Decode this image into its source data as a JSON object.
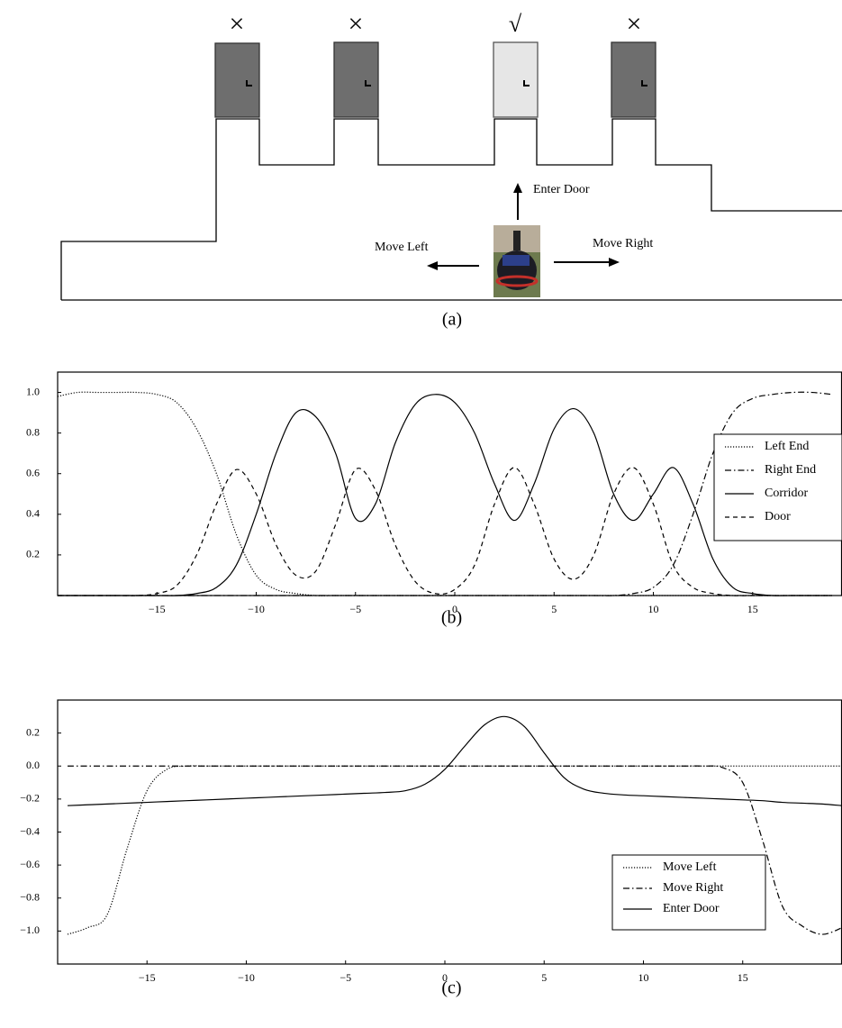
{
  "diagram": {
    "marks": [
      "×",
      "×",
      "√",
      "×"
    ],
    "enter_label": "Enter Door",
    "left_label": "Move Left",
    "right_label": "Move Right",
    "caption": "(a)"
  },
  "chart_data": [
    {
      "type": "line",
      "caption": "(b)",
      "xlim": [
        -20,
        19.5
      ],
      "ylim": [
        0,
        1.1
      ],
      "xticks": [
        {
          "value": -15,
          "label": "−15"
        },
        {
          "value": -10,
          "label": "−10"
        },
        {
          "value": -5,
          "label": "−5"
        },
        0,
        5,
        10,
        15
      ],
      "yticks": [
        0.2,
        0.4,
        0.6,
        0.8,
        {
          "value": 1,
          "label": "1.0"
        }
      ],
      "legend": "right",
      "x": [
        -20,
        -19,
        -18,
        -17,
        -16,
        -15,
        -14,
        -13,
        -12,
        -11,
        -10,
        -9,
        -8,
        -7,
        -6,
        -5,
        -4,
        -3,
        -2,
        -1,
        0,
        1,
        2,
        3,
        4,
        5,
        6,
        7,
        8,
        9,
        10,
        11,
        12,
        13,
        14,
        15,
        16,
        17,
        18,
        19
      ],
      "series": [
        {
          "name": "Left End",
          "color": "#000000",
          "style": "dotted",
          "values": [
            0.98,
            1,
            1,
            1,
            1,
            0.99,
            0.95,
            0.82,
            0.6,
            0.3,
            0.1,
            0.03,
            0.01,
            0,
            0,
            0,
            0,
            0,
            0,
            0,
            0,
            0,
            0,
            0,
            0,
            0,
            0,
            0,
            0,
            0,
            0,
            0,
            0,
            0,
            0,
            0,
            0,
            0,
            0,
            0
          ]
        },
        {
          "name": "Right End",
          "color": "#000000",
          "style": "dashdot",
          "values": [
            0,
            0,
            0,
            0,
            0,
            0,
            0,
            0,
            0,
            0,
            0,
            0,
            0,
            0,
            0,
            0,
            0,
            0,
            0,
            0,
            0,
            0,
            0,
            0,
            0,
            0,
            0,
            0,
            0,
            0.01,
            0.04,
            0.15,
            0.4,
            0.7,
            0.9,
            0.97,
            0.99,
            1,
            1,
            0.99
          ]
        },
        {
          "name": "Corridor",
          "color": "#000000",
          "style": "solid",
          "values": [
            0,
            0,
            0,
            0,
            0,
            0,
            0,
            0.01,
            0.04,
            0.15,
            0.4,
            0.7,
            0.9,
            0.88,
            0.7,
            0.38,
            0.45,
            0.75,
            0.94,
            0.99,
            0.95,
            0.8,
            0.55,
            0.37,
            0.55,
            0.82,
            0.92,
            0.8,
            0.5,
            0.37,
            0.5,
            0.63,
            0.45,
            0.18,
            0.04,
            0.01,
            0,
            0,
            0,
            0
          ]
        },
        {
          "name": "Door",
          "color": "#000000",
          "style": "dashed",
          "values": [
            0,
            0,
            0,
            0,
            0,
            0.01,
            0.05,
            0.2,
            0.45,
            0.62,
            0.5,
            0.25,
            0.1,
            0.12,
            0.35,
            0.62,
            0.52,
            0.25,
            0.07,
            0.01,
            0.03,
            0.15,
            0.45,
            0.63,
            0.45,
            0.18,
            0.08,
            0.2,
            0.5,
            0.63,
            0.45,
            0.15,
            0.04,
            0.01,
            0,
            0,
            0,
            0,
            0,
            0
          ]
        }
      ]
    },
    {
      "type": "line",
      "caption": "(c)",
      "xlim": [
        -19.5,
        20
      ],
      "ylim": [
        -1.2,
        0.4
      ],
      "xticks": [
        {
          "value": -15,
          "label": "−15"
        },
        {
          "value": -10,
          "label": "−10"
        },
        {
          "value": -5,
          "label": "−5"
        },
        0,
        5,
        10,
        15
      ],
      "yticks": [
        {
          "value": -1,
          "label": "−1.0"
        },
        {
          "value": -0.8,
          "label": "−0.8"
        },
        {
          "value": -0.6,
          "label": "−0.6"
        },
        {
          "value": -0.4,
          "label": "−0.4"
        },
        {
          "value": -0.2,
          "label": "−0.2"
        },
        {
          "value": 0,
          "label": "0.0"
        },
        0.2
      ],
      "legend": "lower right",
      "x": [
        -19,
        -18,
        -17,
        -16,
        -15,
        -14,
        -13,
        -12,
        -11,
        -10,
        -9,
        -8,
        -7,
        -6,
        -5,
        -4,
        -3,
        -2,
        -1,
        0,
        1,
        2,
        3,
        4,
        5,
        6,
        7,
        8,
        9,
        10,
        11,
        12,
        13,
        14,
        15,
        16,
        17,
        18,
        19,
        20
      ],
      "series": [
        {
          "name": "Move Left",
          "color": "#000000",
          "style": "dotted",
          "values": [
            -1.02,
            -0.98,
            -0.9,
            -0.5,
            -0.15,
            -0.02,
            0,
            0,
            0,
            0,
            0,
            0,
            0,
            0,
            0,
            0,
            0,
            0,
            0,
            0,
            0,
            0,
            0,
            0,
            0,
            0,
            0,
            0,
            0,
            0,
            0,
            0,
            0,
            0,
            0,
            0,
            0,
            0,
            0,
            0
          ]
        },
        {
          "name": "Move Right",
          "color": "#000000",
          "style": "dashdot",
          "values": [
            0,
            0,
            0,
            0,
            0,
            0,
            0,
            0,
            0,
            0,
            0,
            0,
            0,
            0,
            0,
            0,
            0,
            0,
            0,
            0,
            0,
            0,
            0,
            0,
            0,
            0,
            0,
            0,
            0,
            0,
            0,
            0,
            0,
            -0.01,
            -0.1,
            -0.45,
            -0.85,
            -0.97,
            -1.02,
            -0.98
          ]
        },
        {
          "name": "Enter Door",
          "color": "#000000",
          "style": "solid",
          "values": [
            -0.24,
            -0.235,
            -0.23,
            -0.225,
            -0.22,
            -0.215,
            -0.21,
            -0.205,
            -0.2,
            -0.195,
            -0.19,
            -0.185,
            -0.18,
            -0.175,
            -0.17,
            -0.165,
            -0.16,
            -0.15,
            -0.11,
            -0.02,
            0.12,
            0.25,
            0.3,
            0.24,
            0.08,
            -0.07,
            -0.14,
            -0.165,
            -0.175,
            -0.18,
            -0.185,
            -0.19,
            -0.195,
            -0.2,
            -0.205,
            -0.21,
            -0.22,
            -0.225,
            -0.23,
            -0.24
          ]
        }
      ]
    }
  ]
}
